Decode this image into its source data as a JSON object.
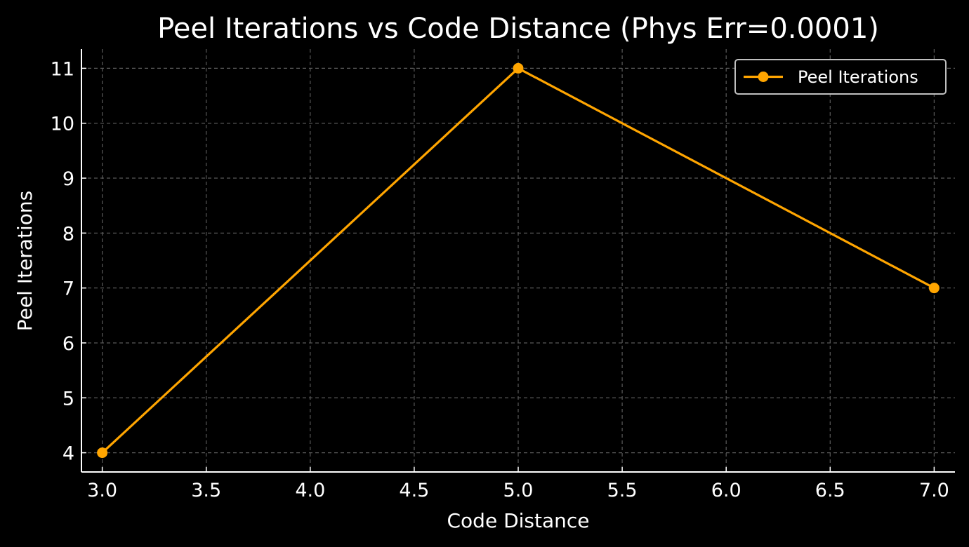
{
  "chart_data": {
    "type": "line",
    "title": "Peel Iterations vs Code Distance (Phys Err=0.0001)",
    "xlabel": "Code Distance",
    "ylabel": "Peel Iterations",
    "x": [
      3,
      5,
      7
    ],
    "series": [
      {
        "name": "Peel Iterations",
        "values": [
          4,
          11,
          7
        ],
        "color": "#ffa500",
        "marker": "circle"
      }
    ],
    "xlim": [
      2.9,
      7.1
    ],
    "ylim": [
      3.65,
      11.35
    ],
    "xticks": [
      "3.0",
      "3.5",
      "4.0",
      "4.5",
      "5.0",
      "5.5",
      "6.0",
      "6.5",
      "7.0"
    ],
    "yticks": [
      "4",
      "5",
      "6",
      "7",
      "8",
      "9",
      "10",
      "11"
    ],
    "grid": true,
    "legend_position": "top-right",
    "background_color": "#000000",
    "foreground_color": "#ffffff",
    "grid_color": "#5a5a5a"
  }
}
